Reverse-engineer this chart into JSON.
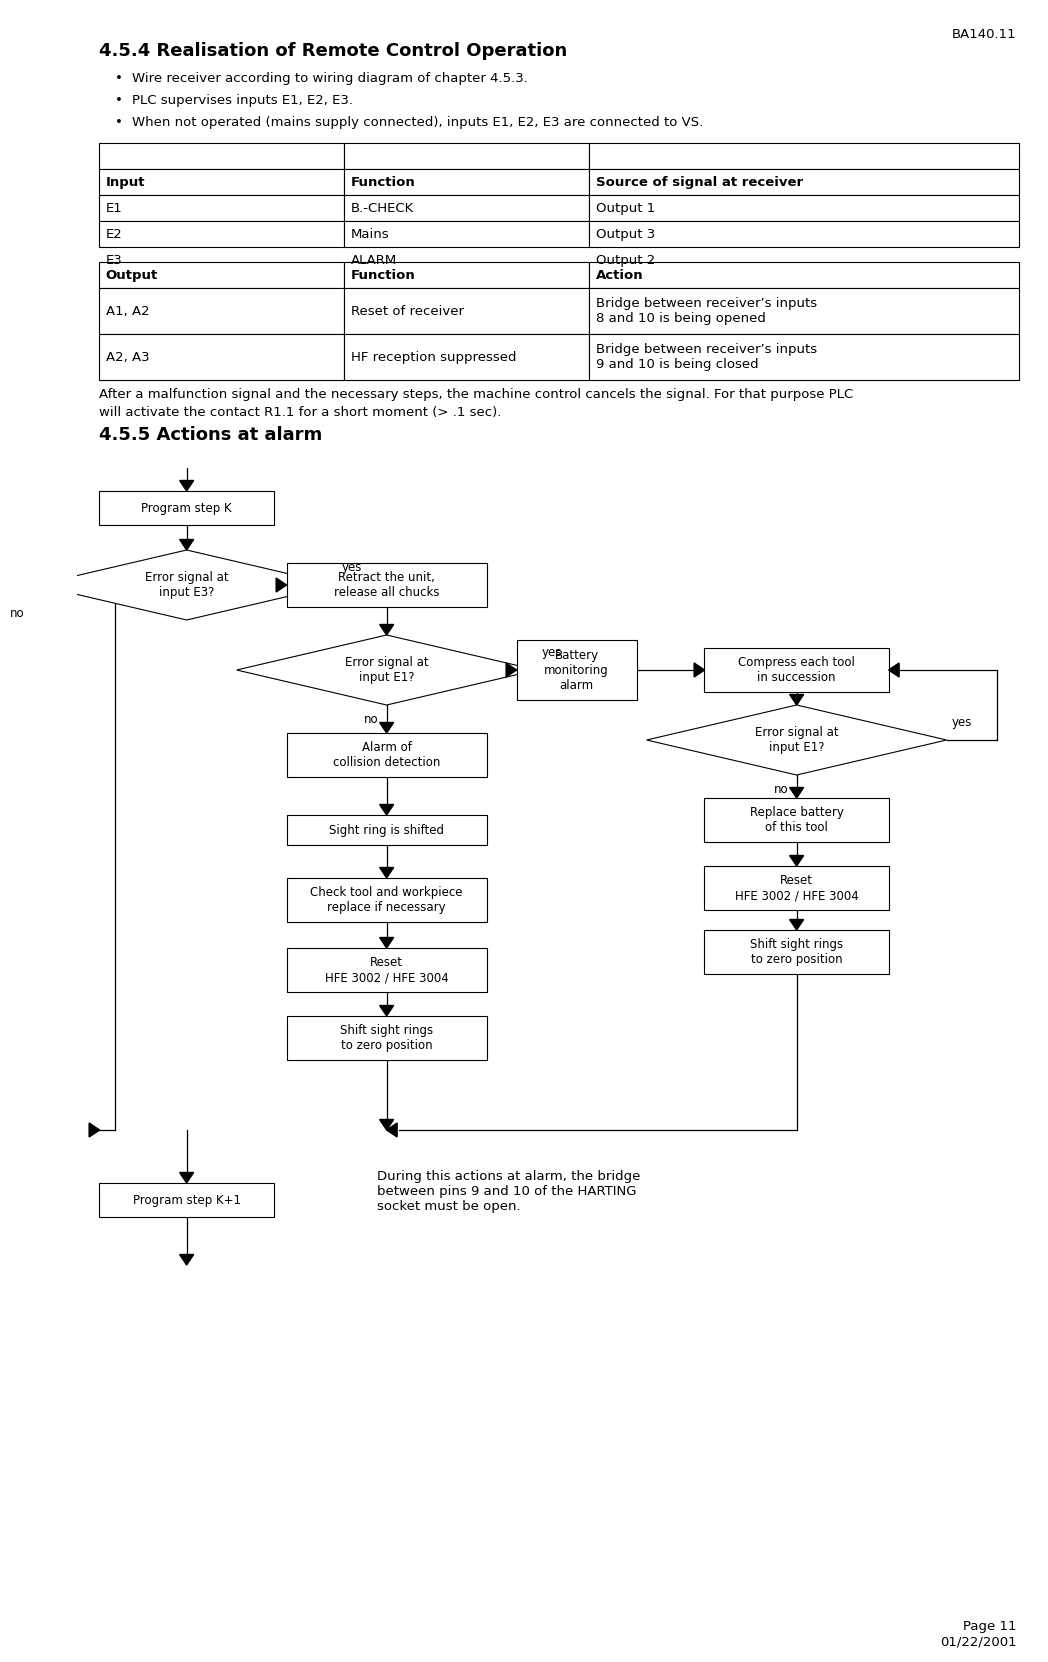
{
  "page_header": "BA140.11",
  "section_title": "4.5.4 Realisation of Remote Control Operation",
  "bullets": [
    "Wire receiver according to wiring diagram of chapter 4.5.3.",
    "PLC supervises inputs E1, E2, E3.",
    "When not operated (mains supply connected), inputs E1, E2, E3 are connected to VS."
  ],
  "table1_headers": [
    "Input",
    "Function",
    "Source of signal at receiver"
  ],
  "table1_rows": [
    [
      "E1",
      "B.-CHECK",
      "Output 1"
    ],
    [
      "E2",
      "Mains",
      "Output 3"
    ],
    [
      "E3",
      "ALARM",
      "Output 2"
    ]
  ],
  "table2_headers": [
    "Output",
    "Function",
    "Action"
  ],
  "table2_rows": [
    [
      "A1, A2",
      "Reset of receiver",
      "Bridge between receiver’s inputs\n8 and 10 is being opened"
    ],
    [
      "A2, A3",
      "HF reception suppressed",
      "Bridge between receiver’s inputs\n9 and 10 is being closed"
    ]
  ],
  "para_line1": "After a malfunction signal and the necessary steps, the machine control cancels the signal. For that purpose PLC",
  "para_line2": "will activate the contact R1.1 for a short moment (> .1 sec).",
  "section2_title": "4.5.5 Actions at alarm",
  "footer_note": "During this actions at alarm, the bridge\nbetween pins 9 and 10 of the HARTING\nsocket must be open.",
  "page_number": "Page 11\n01/22/2001",
  "bg_color": "#ffffff",
  "text_color": "#000000"
}
